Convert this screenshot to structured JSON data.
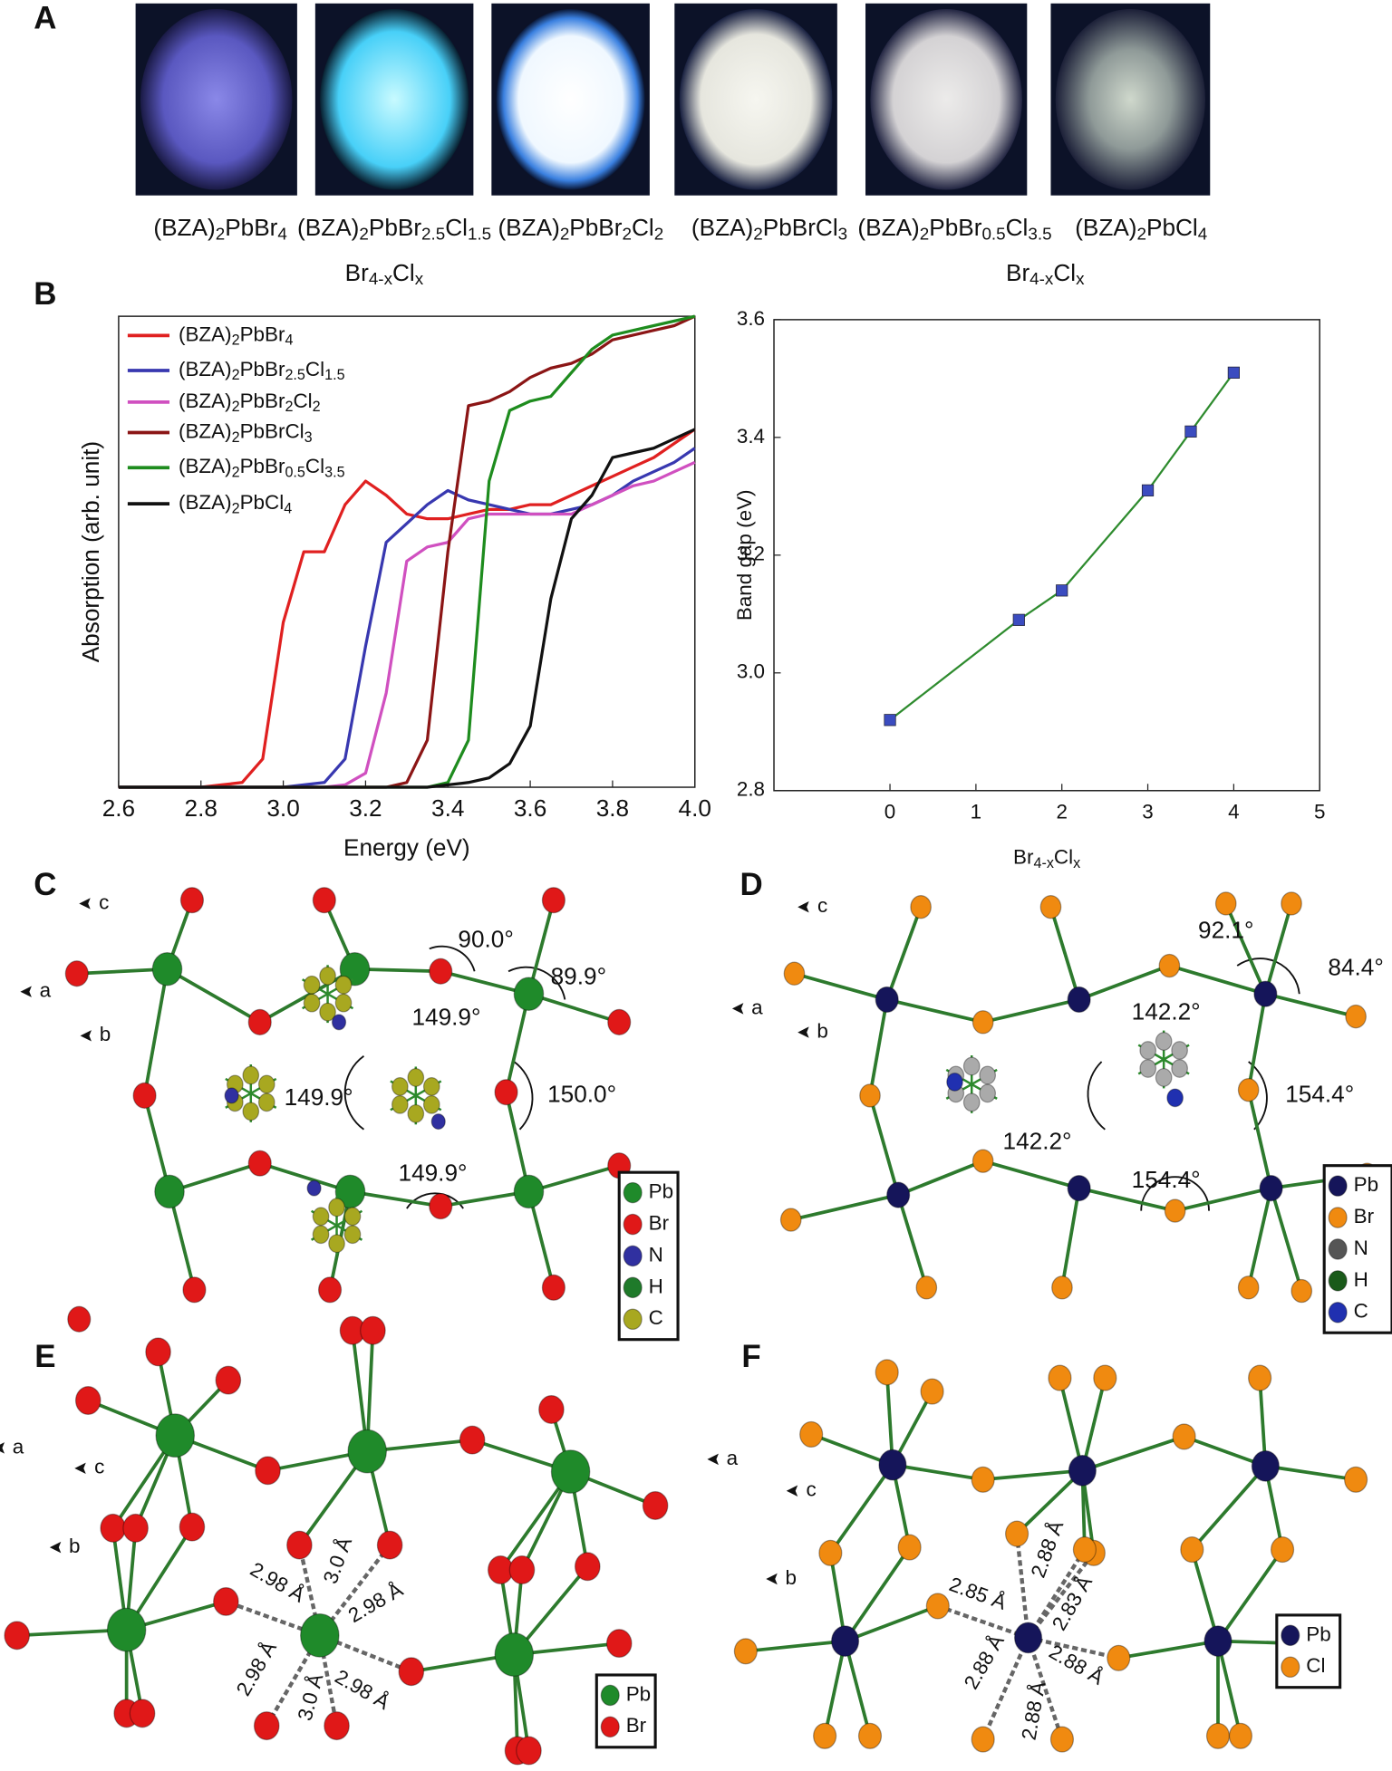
{
  "panel_labels": [
    "A",
    "B",
    "C",
    "D",
    "E",
    "F"
  ],
  "photos": {
    "labels": [
      "(BZA)2PbBr4",
      "(BZA)2PbBr2.5Cl1.5",
      "(BZA)2PbBr2Cl2",
      "(BZA)2PbBrCl3",
      "(BZA)2PbBr0.5Cl3.5",
      "(BZA)2PbCl4"
    ],
    "group_labels": [
      "Br4-xClx",
      "Br4-xClx"
    ]
  },
  "chart_data": [
    {
      "type": "line",
      "xlabel": "Energy (eV)",
      "ylabel": "Absorption (arb. unit)",
      "x": [
        2.6,
        2.65,
        2.7,
        2.75,
        2.8,
        2.85,
        2.9,
        2.95,
        3.0,
        3.05,
        3.1,
        3.15,
        3.2,
        3.25,
        3.3,
        3.35,
        3.4,
        3.45,
        3.5,
        3.55,
        3.6,
        3.65,
        3.7,
        3.75,
        3.8,
        3.85,
        3.9,
        3.95,
        4.0
      ],
      "xlim": [
        2.6,
        4.0
      ],
      "xticks": [
        2.6,
        2.8,
        {
          "value": 3,
          "label": "3.0"
        },
        3.2,
        3.4,
        3.6,
        3.8,
        {
          "value": 4,
          "label": "4.0"
        }
      ],
      "ylim": [
        0,
        1
      ],
      "legend": "upper left",
      "series": [
        {
          "name": "(BZA)2PbBr4",
          "color": "#e02020",
          "values": [
            0,
            0,
            0,
            0,
            0,
            0.005,
            0.01,
            0.06,
            0.35,
            0.5,
            0.5,
            0.6,
            0.65,
            0.62,
            0.58,
            0.57,
            0.57,
            0.58,
            0.59,
            0.59,
            0.6,
            0.6,
            0.62,
            0.64,
            0.66,
            0.68,
            0.7,
            0.73,
            0.76
          ]
        },
        {
          "name": "(BZA)2PbBr2.5Cl1.5",
          "color": "#3838b0",
          "values": [
            0,
            0,
            0,
            0,
            0,
            0,
            0,
            0,
            0,
            0.005,
            0.01,
            0.06,
            0.3,
            0.52,
            0.56,
            0.6,
            0.63,
            0.61,
            0.6,
            0.59,
            0.58,
            0.58,
            0.59,
            0.6,
            0.62,
            0.65,
            0.67,
            0.69,
            0.72
          ]
        },
        {
          "name": "(BZA)2PbBr2Cl2",
          "color": "#d050c0",
          "values": [
            0,
            0,
            0,
            0,
            0,
            0,
            0,
            0,
            0,
            0,
            0,
            0.005,
            0.03,
            0.2,
            0.48,
            0.51,
            0.52,
            0.57,
            0.58,
            0.58,
            0.58,
            0.58,
            0.58,
            0.6,
            0.62,
            0.64,
            0.65,
            0.67,
            0.69
          ]
        },
        {
          "name": "(BZA)2PbBrCl3",
          "color": "#8b1515",
          "values": [
            0,
            0,
            0,
            0,
            0,
            0,
            0,
            0,
            0,
            0,
            0,
            0,
            0,
            0,
            0.01,
            0.1,
            0.5,
            0.81,
            0.82,
            0.84,
            0.87,
            0.89,
            0.9,
            0.92,
            0.95,
            0.96,
            0.97,
            0.98,
            1.0
          ]
        },
        {
          "name": "(BZA)2PbBr0.5Cl3.5",
          "color": "#1e8c1e",
          "values": [
            0,
            0,
            0,
            0,
            0,
            0,
            0,
            0,
            0,
            0,
            0,
            0,
            0,
            0,
            0,
            0,
            0.01,
            0.1,
            0.65,
            0.8,
            0.82,
            0.83,
            0.88,
            0.93,
            0.96,
            0.97,
            0.98,
            0.99,
            1.0
          ]
        },
        {
          "name": "(BZA)2PbCl4",
          "color": "#111111",
          "values": [
            0,
            0,
            0,
            0,
            0,
            0,
            0,
            0,
            0,
            0,
            0,
            0,
            0,
            0,
            0,
            0,
            0.005,
            0.01,
            0.02,
            0.05,
            0.13,
            0.4,
            0.57,
            0.62,
            0.7,
            0.71,
            0.72,
            0.74,
            0.76
          ]
        }
      ]
    },
    {
      "type": "line",
      "xlabel": "Br4-xClx",
      "ylabel": "Band gap (eV)",
      "x": [
        0,
        1.5,
        2,
        3,
        3.5,
        4
      ],
      "xlim": [
        -1.35,
        5
      ],
      "xticks": [
        0,
        1,
        2,
        3,
        4,
        5
      ],
      "ylim": [
        2.8,
        3.6
      ],
      "yticks": [
        2.8,
        {
          "value": 3,
          "label": "3.0"
        },
        3.2,
        3.4,
        3.6
      ],
      "marker": "square",
      "series": [
        {
          "color": "#2e8b2e",
          "marker_color": "#3b4cc0",
          "values": [
            2.92,
            3.09,
            3.14,
            3.31,
            3.41,
            3.51
          ]
        }
      ]
    }
  ],
  "structures": [
    {
      "axes": [
        "c",
        "a",
        "b"
      ],
      "angles": [
        "90.0°",
        "89.9°",
        "149.9°",
        "149.9°",
        "150.0°",
        "149.9°"
      ],
      "legend": [
        {
          "label": "Pb",
          "color": "#1f8a2a"
        },
        {
          "label": "Br",
          "color": "#e01818"
        },
        {
          "label": "N",
          "color": "#3030a0"
        },
        {
          "label": "H",
          "color": "#1f7a2a"
        },
        {
          "label": "C",
          "color": "#a8a820"
        }
      ]
    },
    {
      "axes": [
        "c",
        "a",
        "b"
      ],
      "angles": [
        "92.1°",
        "84.4°",
        "142.2°",
        "142.2°",
        "154.4°",
        "154.4°"
      ],
      "legend": [
        {
          "label": "Pb",
          "color": "#15155a"
        },
        {
          "label": "Br",
          "color": "#f08a10"
        },
        {
          "label": "N",
          "color": "#555555"
        },
        {
          "label": "H",
          "color": "#1a5a1a"
        },
        {
          "label": "C",
          "color": "#2030b0"
        }
      ]
    },
    {
      "axes": [
        "a",
        "c",
        "b"
      ],
      "distances": [
        "3.0 Å",
        "2.98 Å",
        "2.98 Å",
        "2.98 Å",
        "3.0 Å",
        "2.98 Å"
      ],
      "legend": [
        {
          "label": "Pb",
          "color": "#1f8a2a"
        },
        {
          "label": "Br",
          "color": "#e01818"
        }
      ]
    },
    {
      "axes": [
        "a",
        "c",
        "b"
      ],
      "distances": [
        "2.88 Å",
        "2.85 Å",
        "2.83 Å",
        "2.88 Å",
        "2.88 Å",
        "2.88 Å"
      ],
      "legend": [
        {
          "label": "Pb",
          "color": "#15155a"
        },
        {
          "label": "Cl",
          "color": "#f08a10"
        }
      ]
    }
  ]
}
